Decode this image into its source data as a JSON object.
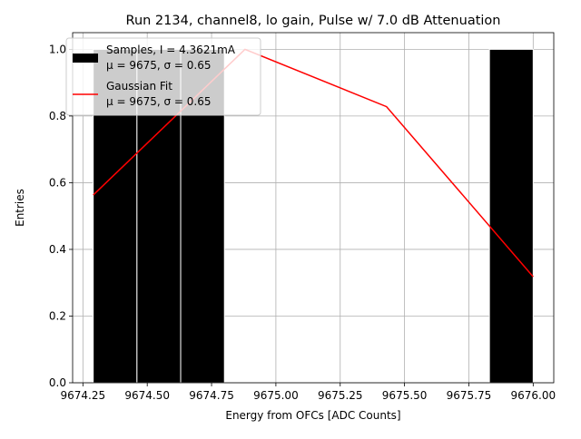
{
  "chart_data": {
    "type": "bar",
    "title": "Run 2134, channel8, lo gain, Pulse w/ 7.0 dB Attenuation",
    "xlabel": "Energy from OFCs [ADC Counts]",
    "ylabel": "Entries",
    "xlim": [
      9674.21,
      9676.08
    ],
    "ylim": [
      0,
      1.05
    ],
    "grid": true,
    "xticks": [
      9674.25,
      9674.5,
      9674.75,
      9675.0,
      9675.25,
      9675.5,
      9675.75,
      9676.0
    ],
    "xtick_labels": [
      "9674.25",
      "9674.50",
      "9674.75",
      "9675.00",
      "9675.25",
      "9675.50",
      "9675.75",
      "9676.00"
    ],
    "yticks": [
      0.0,
      0.2,
      0.4,
      0.6,
      0.8,
      1.0
    ],
    "ytick_labels": [
      "0.0",
      "0.2",
      "0.4",
      "0.6",
      "0.8",
      "1.0"
    ],
    "histogram": {
      "name": "Samples, I = 4.3621mA",
      "stats": "μ = 9675, σ = 0.65",
      "color": "#000000",
      "bins": [
        {
          "x0": 9674.29,
          "x1": 9674.46,
          "value": 1
        },
        {
          "x0": 9674.46,
          "x1": 9674.63,
          "value": 1
        },
        {
          "x0": 9674.63,
          "x1": 9674.8,
          "value": 1
        },
        {
          "x0": 9675.83,
          "x1": 9676.0,
          "value": 1
        }
      ]
    },
    "fit": {
      "name": "Gaussian Fit",
      "stats": "μ = 9675, σ = 0.65",
      "color": "#ff0000",
      "x": [
        9674.29,
        9674.88,
        9675.43,
        9676.0
      ],
      "y": [
        0.563,
        1.0,
        0.828,
        0.318
      ]
    },
    "legend_position": "upper-left"
  }
}
